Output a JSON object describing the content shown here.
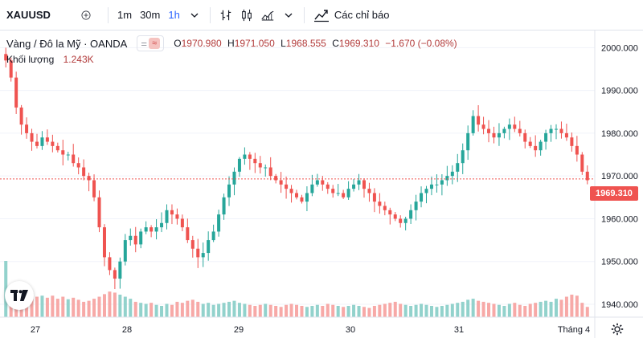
{
  "toolbar": {
    "symbol": "XAUUSD",
    "intervals": [
      "1m",
      "30m",
      "1h"
    ],
    "active_interval": "1h",
    "indicators_label": "Các chỉ báo"
  },
  "legend": {
    "title": "Vàng / Đô la Mỹ · OANDA",
    "open_label": "O",
    "open": "1970.980",
    "high_label": "H",
    "high": "1971.050",
    "low_label": "L",
    "low": "1968.555",
    "close_label": "C",
    "close": "1969.310",
    "change": "−1.670 (−0.08%)"
  },
  "volume": {
    "label": "Khối lượng",
    "value": "1.243K"
  },
  "price_axis": {
    "ticks": [
      "2000.000",
      "1990.000",
      "1980.000",
      "1970.000",
      "1960.000",
      "1950.000",
      "1940.000"
    ],
    "current_price": "1969.310"
  },
  "time_axis": {
    "ticks": [
      "27",
      "28",
      "29",
      "30",
      "31",
      "Tháng 4"
    ]
  },
  "colors": {
    "up": "#26a69a",
    "down": "#ef5350",
    "up_volume": "#92d2cc",
    "down_volume": "#f7a9a7"
  },
  "chart_data": {
    "type": "candlestick",
    "symbol": "XAUUSD",
    "interval": "1h",
    "ylim": [
      1937,
      2004
    ],
    "x_categories": [
      "27",
      "28",
      "29",
      "30",
      "31",
      "Tháng 4"
    ],
    "candles_close": [
      1997,
      1993,
      1986,
      1982,
      1980,
      1978,
      1977,
      1979,
      1978,
      1977,
      1976,
      1975,
      1975,
      1973,
      1972,
      1970,
      1969,
      1965,
      1958,
      1951,
      1948,
      1946,
      1950,
      1955,
      1956,
      1954,
      1957,
      1958,
      1957,
      1958,
      1959,
      1962,
      1961,
      1960,
      1958,
      1955,
      1953,
      1951,
      1952,
      1955,
      1957,
      1961,
      1965,
      1968,
      1971,
      1974,
      1975,
      1974,
      1973,
      1972,
      1972,
      1970,
      1969,
      1968,
      1967,
      1966,
      1965,
      1964,
      1966,
      1968,
      1969,
      1968,
      1967,
      1966,
      1966,
      1965,
      1967,
      1968,
      1969,
      1967,
      1966,
      1964,
      1963,
      1962,
      1961,
      1960,
      1959,
      1960,
      1962,
      1964,
      1966,
      1967,
      1968,
      1968,
      1969,
      1970,
      1971,
      1973,
      1976,
      1980,
      1984,
      1982,
      1981,
      1980,
      1979,
      1980,
      1981,
      1982,
      1981,
      1980,
      1978,
      1977,
      1976,
      1978,
      1980,
      1981,
      1981,
      1980,
      1979,
      1977,
      1975,
      1971,
      1969
    ],
    "volume_values": [
      110,
      60,
      55,
      58,
      50,
      46,
      40,
      42,
      38,
      42,
      36,
      40,
      35,
      38,
      34,
      30,
      32,
      36,
      40,
      45,
      50,
      48,
      44,
      40,
      36,
      30,
      28,
      26,
      28,
      24,
      22,
      26,
      24,
      30,
      28,
      32,
      34,
      30,
      26,
      28,
      24,
      26,
      28,
      30,
      32,
      28,
      26,
      24,
      22,
      24,
      26,
      24,
      22,
      20,
      24,
      26,
      24,
      22,
      20,
      22,
      24,
      22,
      26,
      24,
      22,
      20,
      22,
      24,
      22,
      20,
      18,
      22,
      24,
      26,
      28,
      30,
      26,
      24,
      22,
      24,
      26,
      24,
      22,
      20,
      22,
      24,
      26,
      28,
      30,
      34,
      36,
      32,
      30,
      28,
      26,
      24,
      22,
      26,
      28,
      24,
      22,
      26,
      28,
      30,
      32,
      30,
      36,
      34,
      40,
      44,
      42,
      28,
      20
    ]
  }
}
